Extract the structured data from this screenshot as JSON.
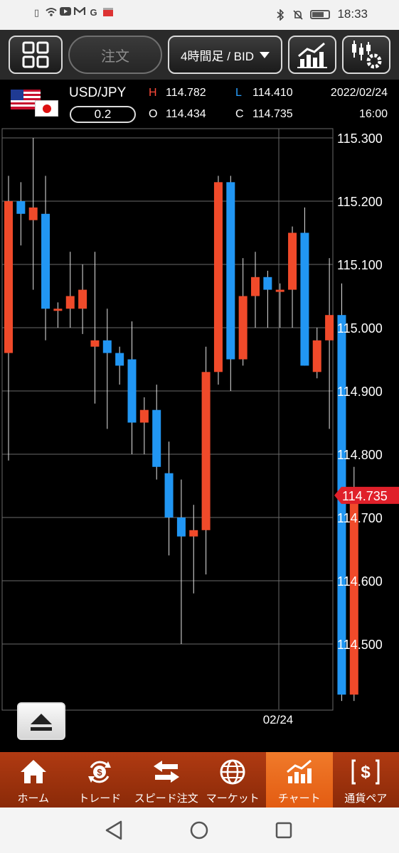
{
  "status_bar": {
    "time": "18:33",
    "left_icons": [
      "sim-alert-icon",
      "wifi-icon",
      "youtube-icon",
      "gmail-icon",
      "google-icon",
      "store-icon"
    ],
    "right_icons": [
      "bluetooth-icon",
      "mute-icon",
      "battery-icon"
    ]
  },
  "toolbar": {
    "order_label": "注文",
    "period_label": "4時間足 / BID"
  },
  "info": {
    "pair": "USD/JPY",
    "spread": "0.2",
    "high_label": "H",
    "high_value": "114.782",
    "open_label": "O",
    "open_value": "114.434",
    "low_label": "L",
    "low_value": "114.410",
    "close_label": "C",
    "close_value": "114.735",
    "date": "2022/02/24",
    "time": "16:00"
  },
  "colors": {
    "up": "#f04a2a",
    "down": "#2196f3",
    "grid": "#6a6a6a",
    "price_tag": "#e0202a",
    "nav_bg": "#9c3210",
    "nav_active": "#ee6b1f"
  },
  "chart_data": {
    "type": "candlestick",
    "instrument": "USD/JPY",
    "timeframe": "4時間足 / BID",
    "y_ticks": [
      "115.300",
      "115.200",
      "115.100",
      "115.000",
      "114.900",
      "114.800",
      "114.700",
      "114.600",
      "114.500"
    ],
    "ylim": [
      114.41,
      115.32
    ],
    "x_label": "02/24",
    "current_price": "114.735",
    "candles": [
      {
        "o": 114.96,
        "h": 115.24,
        "l": 114.79,
        "c": 115.2
      },
      {
        "o": 115.2,
        "h": 115.23,
        "l": 115.13,
        "c": 115.18
      },
      {
        "o": 115.17,
        "h": 115.3,
        "l": 115.06,
        "c": 115.19
      },
      {
        "o": 115.18,
        "h": 115.24,
        "l": 114.98,
        "c": 115.03
      },
      {
        "o": 115.03,
        "h": 115.04,
        "l": 115.0,
        "c": 115.03
      },
      {
        "o": 115.03,
        "h": 115.12,
        "l": 115.0,
        "c": 115.05
      },
      {
        "o": 115.03,
        "h": 115.1,
        "l": 114.99,
        "c": 115.06
      },
      {
        "o": 114.97,
        "h": 115.12,
        "l": 114.88,
        "c": 114.98
      },
      {
        "o": 114.98,
        "h": 115.03,
        "l": 114.84,
        "c": 114.96
      },
      {
        "o": 114.96,
        "h": 114.97,
        "l": 114.91,
        "c": 114.94
      },
      {
        "o": 114.95,
        "h": 115.01,
        "l": 114.8,
        "c": 114.85
      },
      {
        "o": 114.85,
        "h": 114.89,
        "l": 114.8,
        "c": 114.87
      },
      {
        "o": 114.87,
        "h": 114.91,
        "l": 114.76,
        "c": 114.78
      },
      {
        "o": 114.77,
        "h": 114.82,
        "l": 114.64,
        "c": 114.7
      },
      {
        "o": 114.7,
        "h": 114.76,
        "l": 114.5,
        "c": 114.67
      },
      {
        "o": 114.67,
        "h": 114.72,
        "l": 114.58,
        "c": 114.68
      },
      {
        "o": 114.68,
        "h": 114.97,
        "l": 114.61,
        "c": 114.93
      },
      {
        "o": 114.93,
        "h": 115.24,
        "l": 114.91,
        "c": 115.23
      },
      {
        "o": 115.23,
        "h": 115.24,
        "l": 114.9,
        "c": 114.95
      },
      {
        "o": 114.95,
        "h": 115.11,
        "l": 114.94,
        "c": 115.05
      },
      {
        "o": 115.05,
        "h": 115.12,
        "l": 115.0,
        "c": 115.08
      },
      {
        "o": 115.08,
        "h": 115.09,
        "l": 115.0,
        "c": 115.06
      },
      {
        "o": 115.06,
        "h": 115.07,
        "l": 115.0,
        "c": 115.06
      },
      {
        "o": 115.06,
        "h": 115.16,
        "l": 115.0,
        "c": 115.15
      },
      {
        "o": 115.15,
        "h": 115.19,
        "l": 114.94,
        "c": 114.94
      },
      {
        "o": 114.93,
        "h": 115.0,
        "l": 114.92,
        "c": 114.98
      },
      {
        "o": 114.98,
        "h": 115.11,
        "l": 114.84,
        "c": 115.02
      },
      {
        "o": 115.02,
        "h": 115.07,
        "l": 114.41,
        "c": 114.42
      },
      {
        "o": 114.42,
        "h": 114.78,
        "l": 114.41,
        "c": 114.73
      }
    ]
  },
  "nav": {
    "items": [
      {
        "label": "ホーム",
        "icon": "home-icon"
      },
      {
        "label": "トレード",
        "icon": "trade-icon"
      },
      {
        "label": "スピード注文",
        "icon": "speed-order-icon"
      },
      {
        "label": "マーケット",
        "icon": "market-globe-icon"
      },
      {
        "label": "チャート",
        "icon": "chart-icon"
      },
      {
        "label": "通貨ペア",
        "icon": "currency-pair-icon"
      }
    ],
    "active_index": 4
  }
}
